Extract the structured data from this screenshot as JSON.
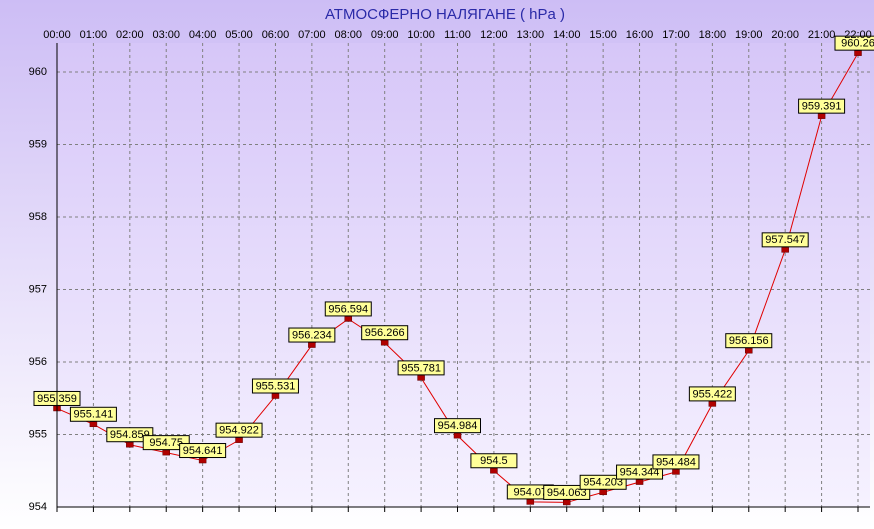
{
  "chart_data": {
    "type": "line",
    "title": "АТМОСФЕРНО НАЛЯГАНЕ  ( hPa )",
    "categories": [
      "00:00",
      "01:00",
      "02:00",
      "03:00",
      "04:00",
      "05:00",
      "06:00",
      "07:00",
      "08:00",
      "09:00",
      "10:00",
      "11:00",
      "12:00",
      "13:00",
      "14:00",
      "15:00",
      "16:00",
      "17:00",
      "18:00",
      "19:00",
      "20:00",
      "21:00",
      "22:00"
    ],
    "values": [
      955.359,
      955.141,
      954.859,
      954.75,
      954.641,
      954.922,
      955.531,
      956.234,
      956.594,
      956.266,
      955.781,
      954.984,
      954.5,
      954.07,
      954.063,
      954.203,
      954.344,
      954.484,
      955.422,
      956.156,
      957.547,
      959.391,
      960.26
    ],
    "color": "#e00000",
    "ylim": [
      954,
      960.4
    ],
    "yticks": [
      954,
      955,
      956,
      957,
      958,
      959,
      960
    ],
    "grid": true
  }
}
